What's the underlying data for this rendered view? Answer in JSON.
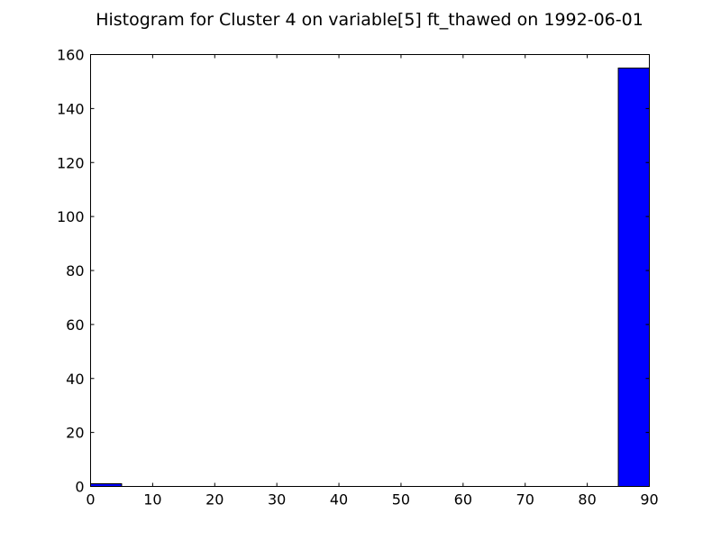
{
  "chart_data": {
    "type": "bar",
    "title": "Histogram for Cluster 4 on variable[5] ft_thawed on 1992-06-01",
    "xlabel": "",
    "ylabel": "",
    "xlim": [
      0,
      90
    ],
    "ylim": [
      0,
      160
    ],
    "xticks": [
      0,
      10,
      20,
      30,
      40,
      50,
      60,
      70,
      80,
      90
    ],
    "yticks": [
      0,
      20,
      40,
      60,
      80,
      100,
      120,
      140,
      160
    ],
    "bin_width": 5,
    "bins": [
      {
        "x0": 0,
        "x1": 5,
        "count": 1
      },
      {
        "x0": 85,
        "x1": 90,
        "count": 155
      }
    ],
    "bar_color": "#0000ff",
    "edge_color": "#000000",
    "grid": false,
    "legend": "none"
  }
}
